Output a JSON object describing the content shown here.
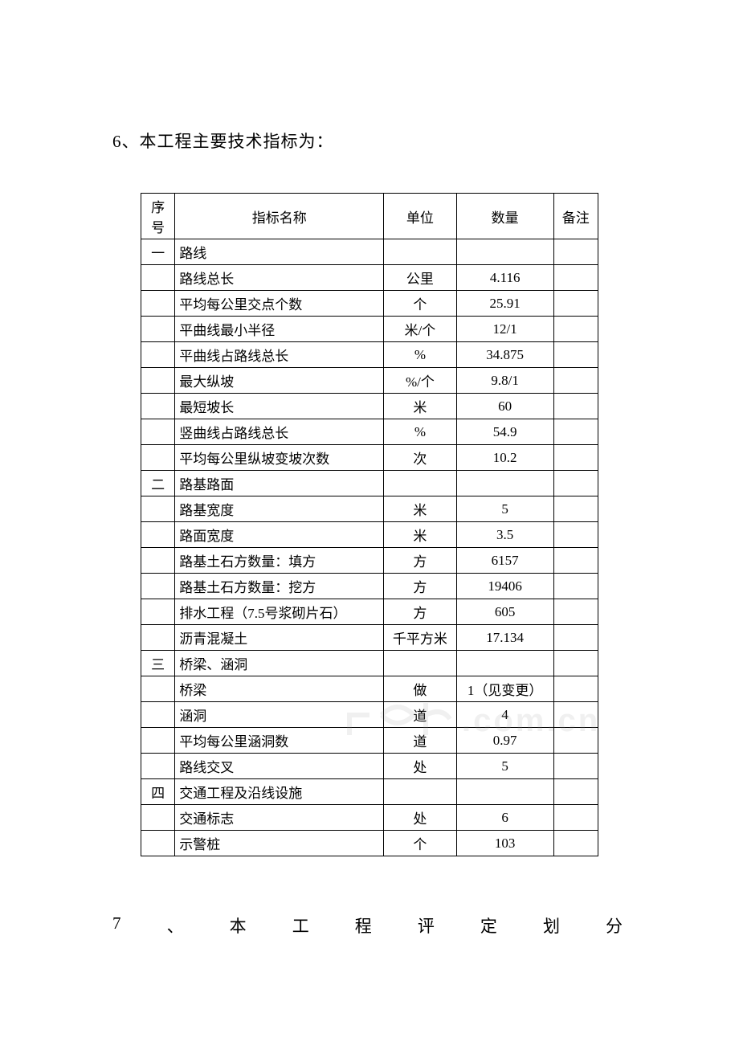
{
  "section6": {
    "title": "6、本工程主要技术指标为：",
    "table": {
      "columns": [
        "序号",
        "指标名称",
        "单位",
        "数量",
        "备注"
      ],
      "rows": [
        {
          "seq": "一",
          "name": "路线",
          "unit": "",
          "qty": "",
          "note": ""
        },
        {
          "seq": "",
          "name": "路线总长",
          "unit": "公里",
          "qty": "4.116",
          "note": ""
        },
        {
          "seq": "",
          "name": "平均每公里交点个数",
          "unit": "个",
          "qty": "25.91",
          "note": ""
        },
        {
          "seq": "",
          "name": "平曲线最小半径",
          "unit": "米/个",
          "qty": "12/1",
          "note": ""
        },
        {
          "seq": "",
          "name": "平曲线占路线总长",
          "unit": "%",
          "qty": "34.875",
          "note": ""
        },
        {
          "seq": "",
          "name": "最大纵坡",
          "unit": "%/个",
          "qty": "9.8/1",
          "note": ""
        },
        {
          "seq": "",
          "name": "最短坡长",
          "unit": "米",
          "qty": "60",
          "note": ""
        },
        {
          "seq": "",
          "name": "竖曲线占路线总长",
          "unit": "%",
          "qty": "54.9",
          "note": ""
        },
        {
          "seq": "",
          "name": "平均每公里纵坡变坡次数",
          "unit": "次",
          "qty": "10.2",
          "note": ""
        },
        {
          "seq": "二",
          "name": "路基路面",
          "unit": "",
          "qty": "",
          "note": ""
        },
        {
          "seq": "",
          "name": "路基宽度",
          "unit": "米",
          "qty": "5",
          "note": ""
        },
        {
          "seq": "",
          "name": "路面宽度",
          "unit": "米",
          "qty": "3.5",
          "note": ""
        },
        {
          "seq": "",
          "name": "路基土石方数量：填方",
          "unit": "方",
          "qty": "6157",
          "note": ""
        },
        {
          "seq": "",
          "name": "路基土石方数量：挖方",
          "unit": "方",
          "qty": "19406",
          "note": ""
        },
        {
          "seq": "",
          "name": "排水工程（7.5号浆砌片石）",
          "unit": "方",
          "qty": "605",
          "note": ""
        },
        {
          "seq": "",
          "name": "沥青混凝土",
          "unit": "千平方米",
          "qty": "17.134",
          "note": ""
        },
        {
          "seq": "三",
          "name": "桥梁、涵洞",
          "unit": "",
          "qty": "",
          "note": ""
        },
        {
          "seq": "",
          "name": "桥梁",
          "unit": "做",
          "qty": "1（见变更）",
          "note": ""
        },
        {
          "seq": "",
          "name": "涵洞",
          "unit": "道",
          "qty": "4",
          "note": ""
        },
        {
          "seq": "",
          "name": "平均每公里涵洞数",
          "unit": "道",
          "qty": "0.97",
          "note": ""
        },
        {
          "seq": "",
          "name": "路线交叉",
          "unit": "处",
          "qty": "5",
          "note": ""
        },
        {
          "seq": "四",
          "name": "交通工程及沿线设施",
          "unit": "",
          "qty": "",
          "note": ""
        },
        {
          "seq": "",
          "name": "交通标志",
          "unit": "处",
          "qty": "6",
          "note": ""
        },
        {
          "seq": "",
          "name": "示警桩",
          "unit": "个",
          "qty": "103",
          "note": ""
        }
      ]
    }
  },
  "section7": {
    "chars": [
      "7",
      "、",
      "本",
      "工",
      "程",
      "评",
      "定",
      "划",
      "分"
    ]
  },
  "watermark": {
    "text": ".com.cn"
  }
}
